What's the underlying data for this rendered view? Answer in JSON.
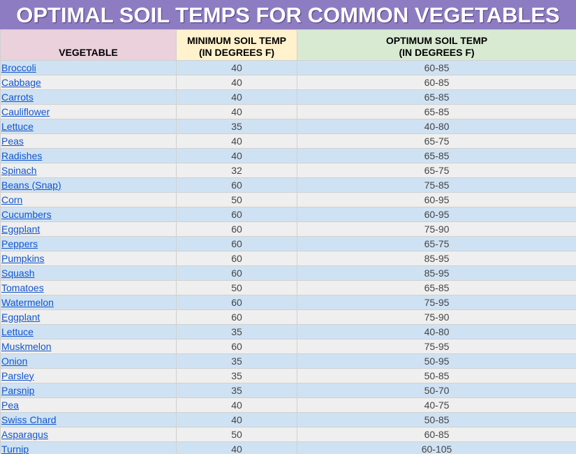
{
  "title": "OPTIMAL SOIL TEMPS FOR COMMON VEGETABLES",
  "table": {
    "headers": [
      [
        "VEGETABLE"
      ],
      [
        "MINIMUM SOIL TEMP",
        "(IN DEGREES F)"
      ],
      [
        "OPTIMUM SOIL TEMP",
        "(IN DEGREES F)"
      ]
    ],
    "rows": [
      [
        "Broccoli",
        40,
        "60-85"
      ],
      [
        "Cabbage",
        40,
        "60-85"
      ],
      [
        "Carrots",
        40,
        "65-85"
      ],
      [
        "Cauliflower",
        40,
        "65-85"
      ],
      [
        "Lettuce",
        35,
        "40-80"
      ],
      [
        "Peas",
        40,
        "65-75"
      ],
      [
        "Radishes",
        40,
        "65-85"
      ],
      [
        "Spinach",
        32,
        "65-75"
      ],
      [
        "Beans (Snap)",
        60,
        "75-85"
      ],
      [
        "Corn",
        50,
        "60-95"
      ],
      [
        "Cucumbers",
        60,
        "60-95"
      ],
      [
        "Eggplant",
        60,
        "75-90"
      ],
      [
        "Peppers",
        60,
        "65-75"
      ],
      [
        "Pumpkins",
        60,
        "85-95"
      ],
      [
        "Squash",
        60,
        "85-95"
      ],
      [
        "Tomatoes",
        50,
        "65-85"
      ],
      [
        "Watermelon",
        60,
        "75-95"
      ],
      [
        "Eggplant",
        60,
        "75-90"
      ],
      [
        "Lettuce",
        35,
        "40-80"
      ],
      [
        "Muskmelon",
        60,
        "75-95"
      ],
      [
        "Onion",
        35,
        "50-95"
      ],
      [
        "Parsley",
        35,
        "50-85"
      ],
      [
        "Parsnip",
        35,
        "50-70"
      ],
      [
        "Pea",
        40,
        "40-75"
      ],
      [
        "Swiss Chard",
        40,
        "50-85"
      ],
      [
        "Asparagus",
        50,
        "60-85"
      ],
      [
        "Turnip",
        40,
        "60-105"
      ]
    ]
  }
}
